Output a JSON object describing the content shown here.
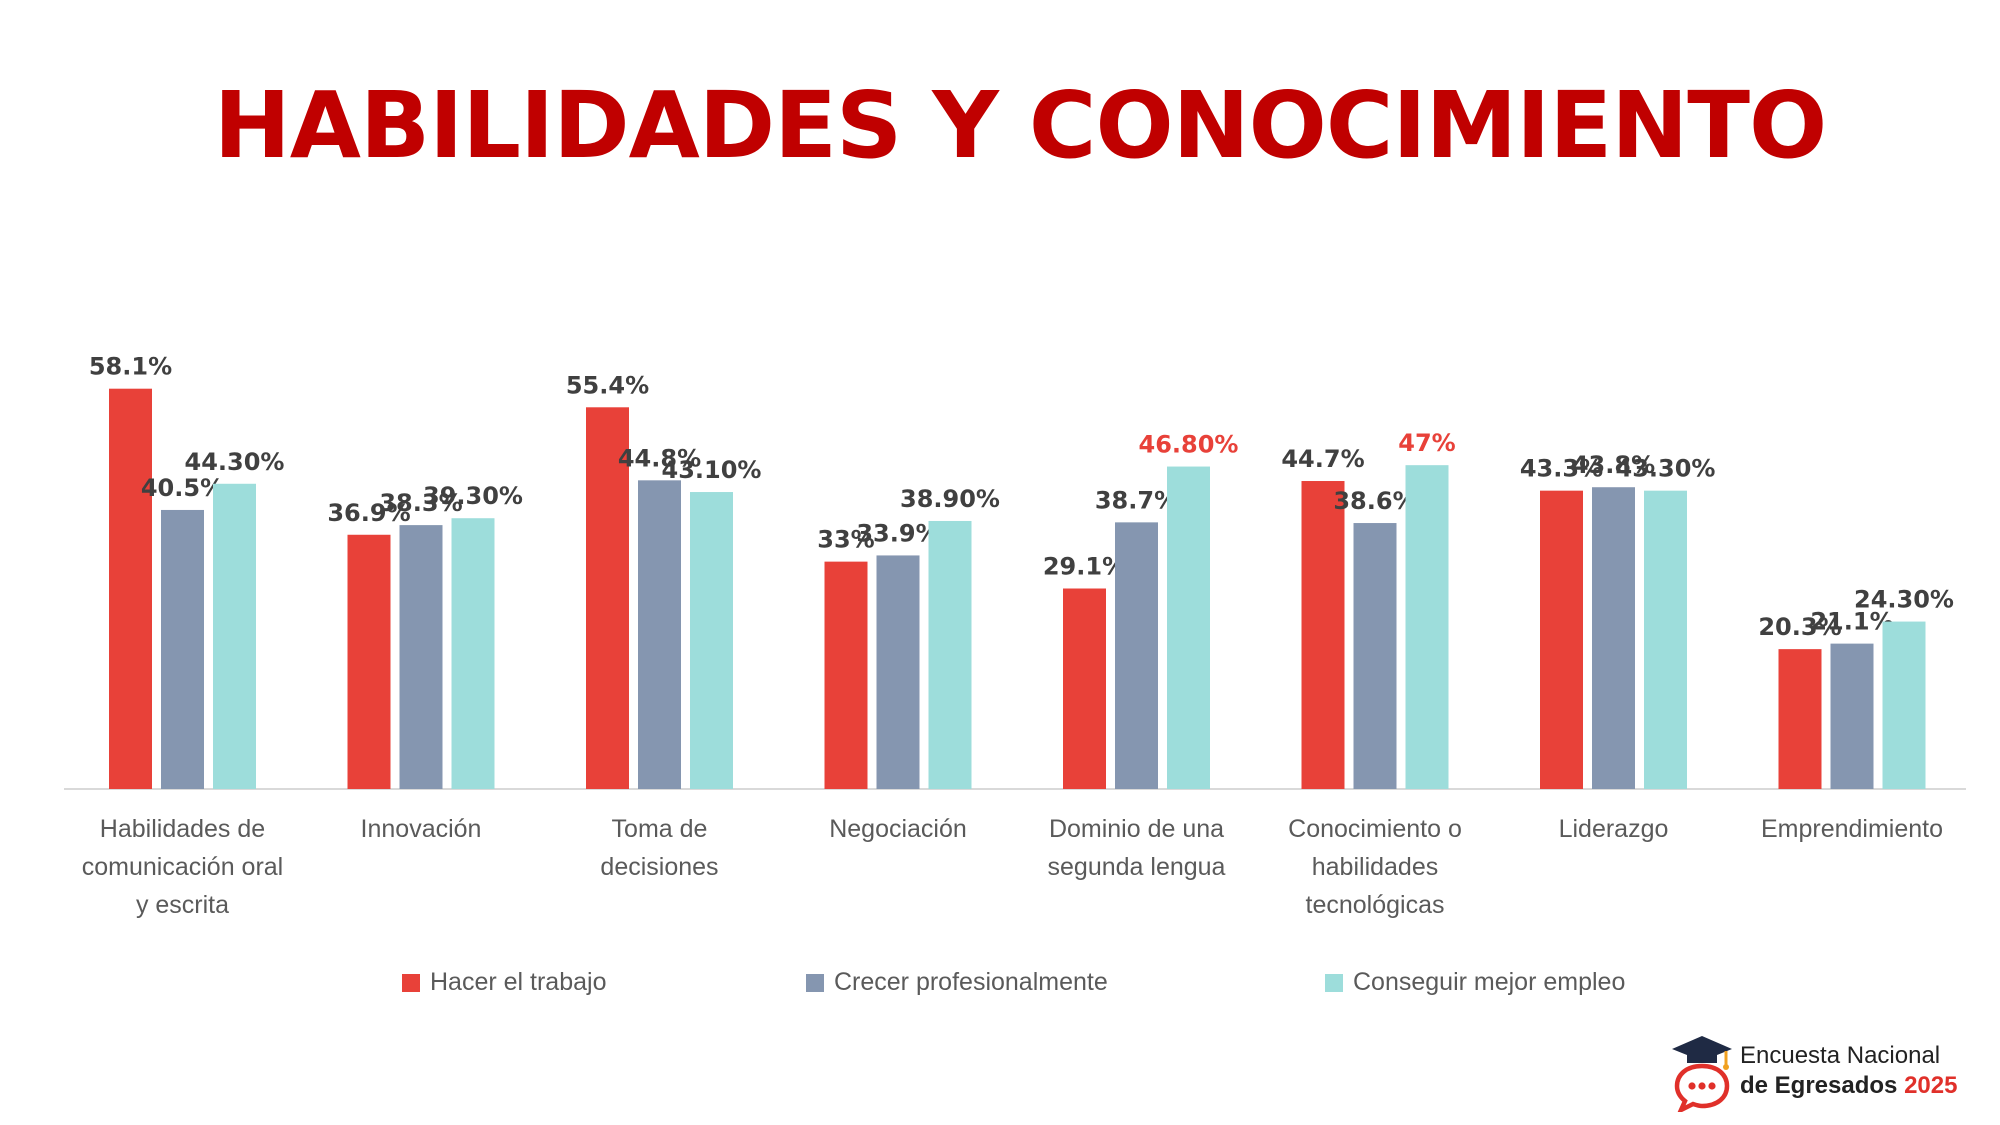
{
  "title": "HABILIDADES Y CONOCIMIENTO",
  "colors": {
    "title": "#c00000",
    "series": [
      "#e84139",
      "#8596b0",
      "#9ddddb"
    ],
    "highlight_label": "#e84139",
    "default_label": "#404040"
  },
  "chart_data": {
    "type": "bar",
    "title": "HABILIDADES Y CONOCIMIENTO",
    "categories": [
      "Habilidades de\ncomunicación oral\ny escrita",
      "Innovación",
      "Toma de\ndecisiones",
      "Negociación",
      "Dominio de una\nsegunda lengua",
      "Conocimiento o\nhabilidades\ntecnológicas",
      "Liderazgo",
      "Emprendimiento"
    ],
    "series": [
      {
        "name": "Hacer el trabajo",
        "values": [
          58.1,
          36.9,
          55.4,
          33,
          29.1,
          44.7,
          43.3,
          20.3
        ],
        "labels": [
          "58.1%",
          "36.9%",
          "55.4%",
          "33%",
          "29.1%",
          "44.7%",
          "43.3%",
          "20.3%"
        ]
      },
      {
        "name": "Crecer profesionalmente",
        "values": [
          40.5,
          38.3,
          44.8,
          33.9,
          38.7,
          38.6,
          43.8,
          21.1
        ],
        "labels": [
          "40.5%",
          "38.3%",
          "44.8%",
          "33.9%",
          "38.7%",
          "38.6%",
          "43.8%",
          "21.1%"
        ]
      },
      {
        "name": "Conseguir mejor empleo",
        "values": [
          44.3,
          39.3,
          43.1,
          38.9,
          46.8,
          47,
          43.3,
          24.3
        ],
        "labels": [
          "44.30%",
          "39.30%",
          "43.10%",
          "38.90%",
          "46.80%",
          "47%",
          "43.30%",
          "24.30%"
        ]
      }
    ],
    "highlighted_labels": [
      {
        "series": 2,
        "category": 4
      },
      {
        "series": 2,
        "category": 5
      }
    ],
    "ylim": [
      0,
      60
    ],
    "grid": false,
    "legend_position": "bottom"
  },
  "branding": {
    "line1": "Encuesta Nacional",
    "line2": "de Egresados",
    "year": "2025",
    "icon": "graduation-cap-chat-icon"
  }
}
